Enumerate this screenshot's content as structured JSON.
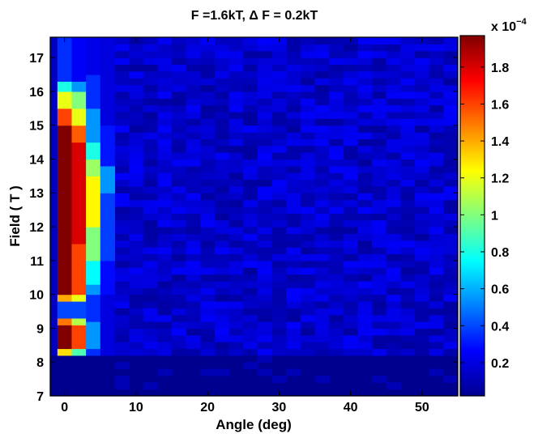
{
  "chart_data": {
    "type": "heatmap",
    "title": "F =1.6kT, Δ F = 0.2kT",
    "xlabel": "Angle (deg)",
    "ylabel": "Field ( T )",
    "xlim": [
      -2,
      55
    ],
    "ylim": [
      7,
      17.6
    ],
    "x_ticks": [
      0,
      10,
      20,
      30,
      40,
      50
    ],
    "y_ticks": [
      7,
      8,
      9,
      10,
      11,
      12,
      13,
      14,
      15,
      16,
      17
    ],
    "colorbar": {
      "multiplier_base": "x 10",
      "multiplier_exponent": "−4",
      "clim": [
        0.02,
        1.97
      ],
      "ticks": [
        0.2,
        0.4,
        0.6,
        0.8,
        1,
        1.2,
        1.4,
        1.6,
        1.8
      ],
      "tick_labels": [
        "0.2",
        "0.4",
        "0.6",
        "0.8",
        "1",
        "1.2",
        "1.4",
        "1.6",
        "1.8"
      ],
      "colormap": "jet"
    },
    "columns": [
      {
        "angle": 0,
        "segments": [
          {
            "y0": 7.0,
            "y1": 8.2,
            "value": 0.05
          },
          {
            "y0": 8.2,
            "y1": 8.4,
            "value": 1.3
          },
          {
            "y0": 8.4,
            "y1": 9.1,
            "value": 1.97
          },
          {
            "y0": 9.1,
            "y1": 9.3,
            "value": 1.5
          },
          {
            "y0": 9.3,
            "y1": 9.8,
            "value": 0.4
          },
          {
            "y0": 9.8,
            "y1": 10.0,
            "value": 1.4
          },
          {
            "y0": 10.0,
            "y1": 15.0,
            "value": 1.97
          },
          {
            "y0": 15.0,
            "y1": 15.5,
            "value": 1.6
          },
          {
            "y0": 15.5,
            "y1": 16.0,
            "value": 1.2
          },
          {
            "y0": 16.0,
            "y1": 16.3,
            "value": 0.8
          },
          {
            "y0": 16.3,
            "y1": 17.6,
            "value": 0.35
          }
        ]
      },
      {
        "angle": 2,
        "segments": [
          {
            "y0": 7.0,
            "y1": 8.2,
            "value": 0.05
          },
          {
            "y0": 8.2,
            "y1": 8.4,
            "value": 0.9
          },
          {
            "y0": 8.4,
            "y1": 9.1,
            "value": 1.6
          },
          {
            "y0": 9.1,
            "y1": 9.3,
            "value": 1.1
          },
          {
            "y0": 9.3,
            "y1": 9.8,
            "value": 0.4
          },
          {
            "y0": 9.8,
            "y1": 10.0,
            "value": 1.2
          },
          {
            "y0": 10.0,
            "y1": 11.5,
            "value": 1.6
          },
          {
            "y0": 11.5,
            "y1": 14.5,
            "value": 1.8
          },
          {
            "y0": 14.5,
            "y1": 15.0,
            "value": 1.55
          },
          {
            "y0": 15.0,
            "y1": 15.5,
            "value": 1.2
          },
          {
            "y0": 15.5,
            "y1": 16.0,
            "value": 1.0
          },
          {
            "y0": 16.0,
            "y1": 16.3,
            "value": 0.55
          },
          {
            "y0": 16.3,
            "y1": 17.6,
            "value": 0.25
          }
        ]
      },
      {
        "angle": 4,
        "segments": [
          {
            "y0": 7.0,
            "y1": 8.2,
            "value": 0.05
          },
          {
            "y0": 8.2,
            "y1": 8.4,
            "value": 0.35
          },
          {
            "y0": 8.4,
            "y1": 9.2,
            "value": 0.55
          },
          {
            "y0": 9.2,
            "y1": 10.0,
            "value": 0.35
          },
          {
            "y0": 10.0,
            "y1": 10.3,
            "value": 0.55
          },
          {
            "y0": 10.3,
            "y1": 11.0,
            "value": 0.75
          },
          {
            "y0": 11.0,
            "y1": 12.0,
            "value": 1.0
          },
          {
            "y0": 12.0,
            "y1": 13.5,
            "value": 1.25
          },
          {
            "y0": 13.5,
            "y1": 14.0,
            "value": 1.05
          },
          {
            "y0": 14.0,
            "y1": 14.5,
            "value": 0.8
          },
          {
            "y0": 14.5,
            "y1": 15.5,
            "value": 0.55
          },
          {
            "y0": 15.5,
            "y1": 16.5,
            "value": 0.35
          },
          {
            "y0": 16.5,
            "y1": 17.6,
            "value": 0.22
          }
        ]
      },
      {
        "angle": 6,
        "segments": [
          {
            "y0": 7.0,
            "y1": 8.2,
            "value": 0.05
          },
          {
            "y0": 8.2,
            "y1": 10.0,
            "value": 0.2
          },
          {
            "y0": 10.0,
            "y1": 11.0,
            "value": 0.28
          },
          {
            "y0": 11.0,
            "y1": 13.0,
            "value": 0.38
          },
          {
            "y0": 13.0,
            "y1": 13.8,
            "value": 0.55
          },
          {
            "y0": 13.8,
            "y1": 15.0,
            "value": 0.3
          },
          {
            "y0": 15.0,
            "y1": 17.6,
            "value": 0.2
          }
        ]
      }
    ],
    "background": {
      "x_range": [
        8,
        54
      ],
      "y_range": [
        8.2,
        17.6
      ],
      "value_range": [
        0.08,
        0.26
      ],
      "low_band": {
        "y0": 7.0,
        "y1": 8.2,
        "value": 0.05
      }
    }
  }
}
